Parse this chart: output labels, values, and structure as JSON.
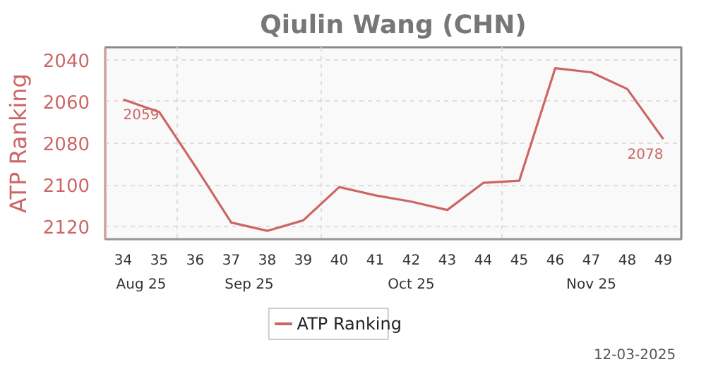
{
  "chart_data": {
    "type": "line",
    "title": "Qiulin Wang (CHN)",
    "ylabel": "ATP Ranking",
    "categories": [
      "34",
      "35",
      "36",
      "37",
      "38",
      "39",
      "40",
      "41",
      "42",
      "43",
      "44",
      "45",
      "46",
      "47",
      "48",
      "49"
    ],
    "series": [
      {
        "name": "ATP Ranking",
        "color": "#cc6666",
        "values": [
          2059,
          2065,
          2091,
          2118,
          2122,
          2117,
          2101,
          2105,
          2108,
          2112,
          2099,
          2098,
          2044,
          2046,
          2054,
          2078
        ],
        "value_labels": [
          "2059",
          null,
          null,
          null,
          null,
          null,
          null,
          null,
          null,
          null,
          null,
          null,
          null,
          null,
          null,
          "2078"
        ]
      }
    ],
    "ylim": [
      2126,
      2034
    ],
    "yticks": [
      2040,
      2060,
      2080,
      2100,
      2120
    ],
    "grid": true,
    "legend": "bottom",
    "marker": "none",
    "line_style": "solid",
    "annotations": [
      "Aug 25",
      "Sep 25",
      "Oct 25",
      "Nov 25",
      "12-03-2025"
    ]
  }
}
